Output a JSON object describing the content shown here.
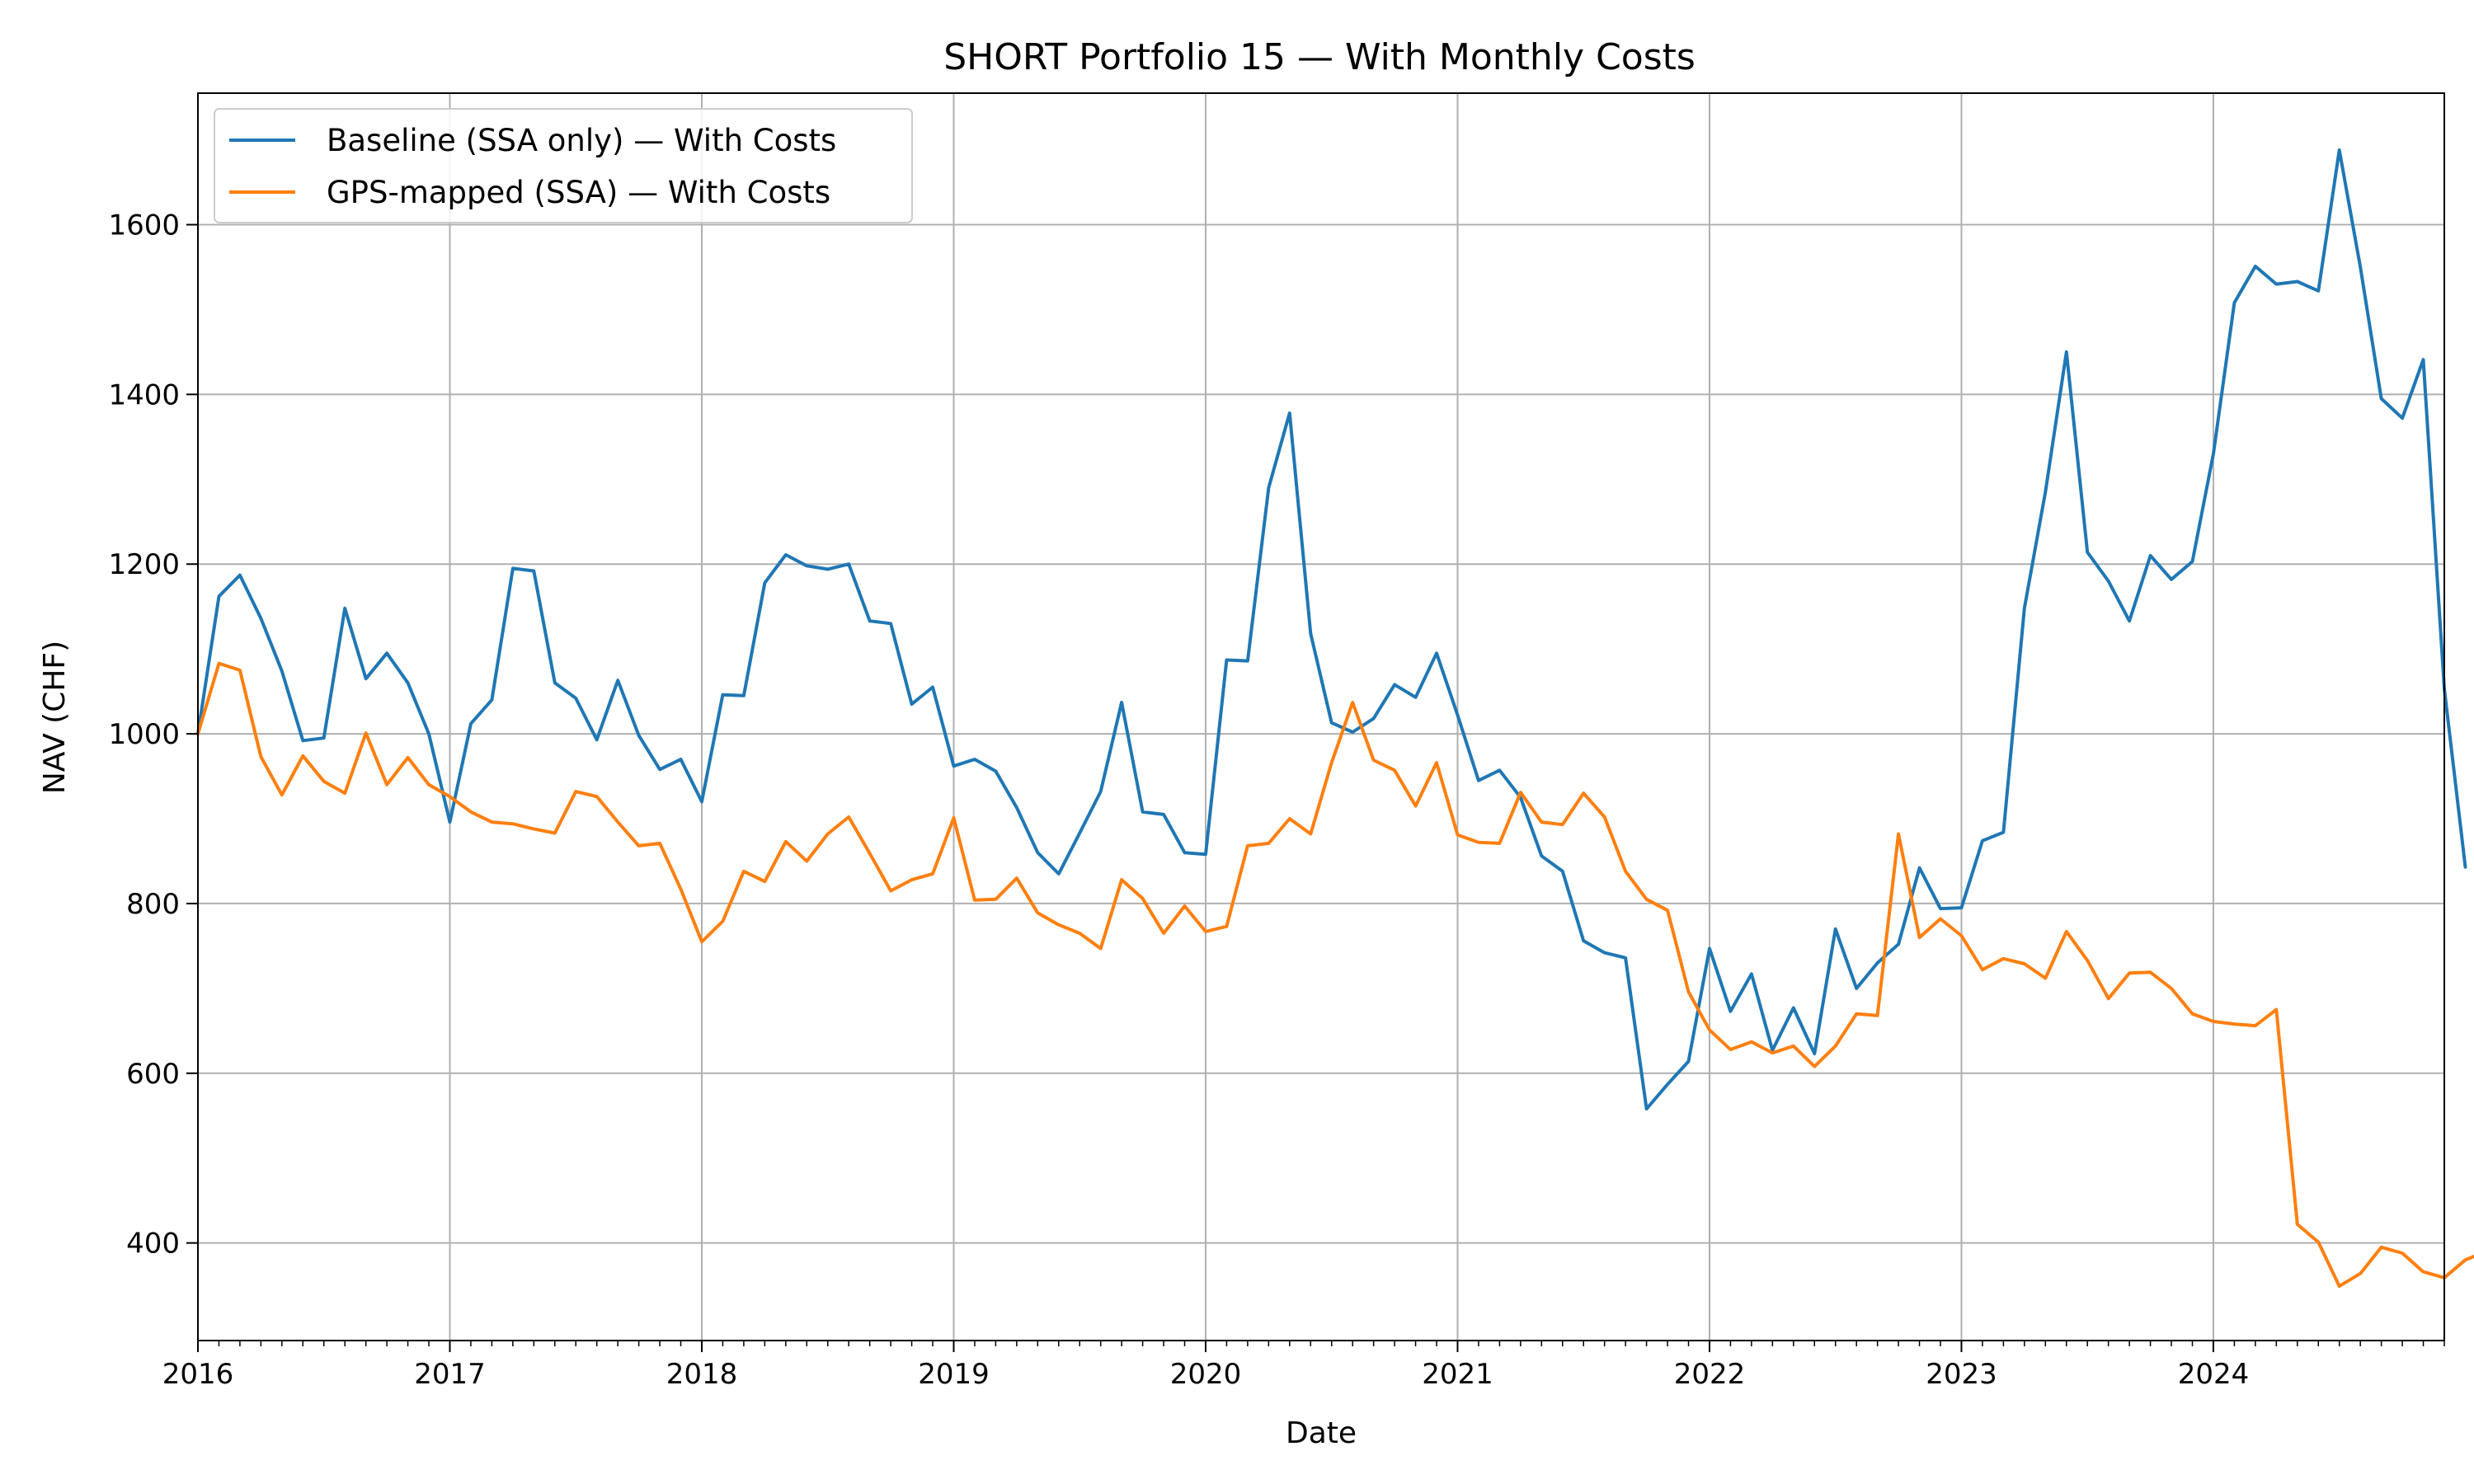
{
  "chart_data": {
    "type": "line",
    "title": "SHORT Portfolio 15 — With Monthly Costs",
    "xlabel": "Date",
    "ylabel": "NAV (CHF)",
    "x_start": "2016-01",
    "x_frequency": "monthly",
    "xlim": [
      "2016-01",
      "2024-12"
    ],
    "ylim": [
      285,
      1755
    ],
    "x_ticks": [
      "2016",
      "2017",
      "2018",
      "2019",
      "2020",
      "2021",
      "2022",
      "2023",
      "2024"
    ],
    "y_ticks": [
      400,
      600,
      800,
      1000,
      1200,
      1400,
      1600
    ],
    "grid": true,
    "legend_position": "upper-left",
    "series": [
      {
        "name": "Baseline (SSA only) — With Costs",
        "color": "#1f77b4",
        "values": [
          1000,
          1162,
          1187,
          1136,
          1074,
          992,
          995,
          1148,
          1065,
          1095,
          1060,
          1000,
          896,
          1012,
          1040,
          1195,
          1192,
          1060,
          1042,
          993,
          1063,
          998,
          958,
          970,
          920,
          1046,
          1045,
          1178,
          1211,
          1198,
          1194,
          1200,
          1133,
          1130,
          1035,
          1055,
          962,
          970,
          956,
          913,
          860,
          835,
          883,
          932,
          1037,
          908,
          905,
          860,
          858,
          1087,
          1086,
          1290,
          1378,
          1118,
          1013,
          1002,
          1018,
          1058,
          1043,
          1095,
          1022,
          945,
          957,
          925,
          856,
          838,
          756,
          742,
          736,
          558,
          587,
          614,
          747,
          673,
          717,
          627,
          677,
          623,
          770,
          700,
          730,
          752,
          842,
          794,
          795,
          874,
          884,
          1148,
          1285,
          1450,
          1214,
          1180,
          1133,
          1210,
          1182,
          1203,
          1330,
          1508,
          1551,
          1530,
          1533,
          1522,
          1688,
          1550,
          1395,
          1372,
          1441,
          1053,
          843
        ]
      },
      {
        "name": "GPS-mapped (SSA) — With Costs",
        "color": "#ff7f0e",
        "values": [
          1000,
          1083,
          1075,
          973,
          928,
          974,
          944,
          930,
          1001,
          940,
          972,
          940,
          926,
          908,
          896,
          894,
          888,
          883,
          932,
          926,
          896,
          868,
          871,
          817,
          755,
          779,
          838,
          826,
          873,
          850,
          882,
          902,
          859,
          815,
          828,
          835,
          901,
          804,
          805,
          830,
          789,
          775,
          765,
          747,
          828,
          806,
          765,
          797,
          767,
          773,
          868,
          871,
          900,
          882,
          966,
          1037,
          969,
          957,
          915,
          966,
          881,
          872,
          871,
          931,
          896,
          893,
          930,
          902,
          838,
          805,
          792,
          696,
          651,
          628,
          637,
          624,
          632,
          608,
          632,
          670,
          668,
          882,
          760,
          782,
          762,
          722,
          735,
          729,
          712,
          767,
          733,
          688,
          718,
          719,
          700,
          670,
          661,
          658,
          656,
          675,
          422,
          401,
          349,
          364,
          395,
          388,
          366,
          359,
          380,
          390
        ]
      }
    ]
  }
}
